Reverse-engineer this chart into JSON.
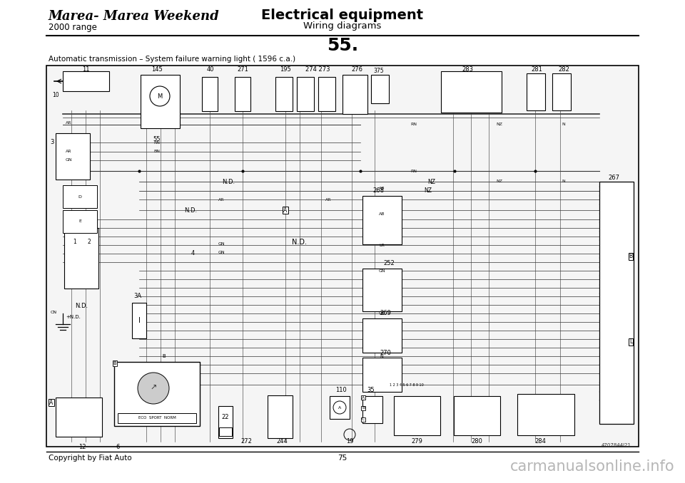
{
  "page_bg": "#ffffff",
  "header_left_line1": "Marea- Marea Weekend",
  "header_left_line2": "2000 range",
  "header_center_line1": "Electrical equipment",
  "header_center_line2": "Wiring diagrams",
  "page_number_text": "55.",
  "subtitle": "Automatic transmission – System failure warning light ( 1596 c.a.)",
  "footer_left": "Copyright by Fiat Auto",
  "footer_center": "75",
  "watermark": "carmanualsonline.info",
  "diagram_ref": "4707844J21",
  "line_color": "#000000"
}
